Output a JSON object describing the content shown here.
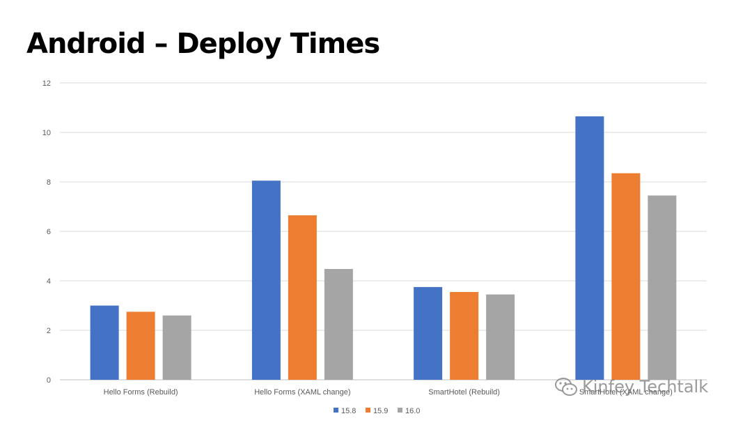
{
  "title": "Android – Deploy Times",
  "watermark_text": "Kinfey Techtalk",
  "chart_data": {
    "type": "bar",
    "categories": [
      "Hello Forms (Rebuild)",
      "Hello Forms (XAML change)",
      "SmartHotel (Rebuild)",
      "SmartHotel (XAML change)"
    ],
    "series": [
      {
        "name": "15.8",
        "color": "#4472C4",
        "values": [
          3.0,
          8.05,
          3.75,
          10.65
        ]
      },
      {
        "name": "15.9",
        "color": "#ED7D31",
        "values": [
          2.75,
          6.65,
          3.55,
          8.35
        ]
      },
      {
        "name": "16.0",
        "color": "#A5A5A5",
        "values": [
          2.6,
          4.48,
          3.45,
          7.45
        ]
      }
    ],
    "yticks": [
      "0",
      "2",
      "4",
      "6",
      "8",
      "10",
      "12"
    ],
    "ylim": [
      0,
      12
    ],
    "grid": true,
    "legend": "bottom"
  }
}
